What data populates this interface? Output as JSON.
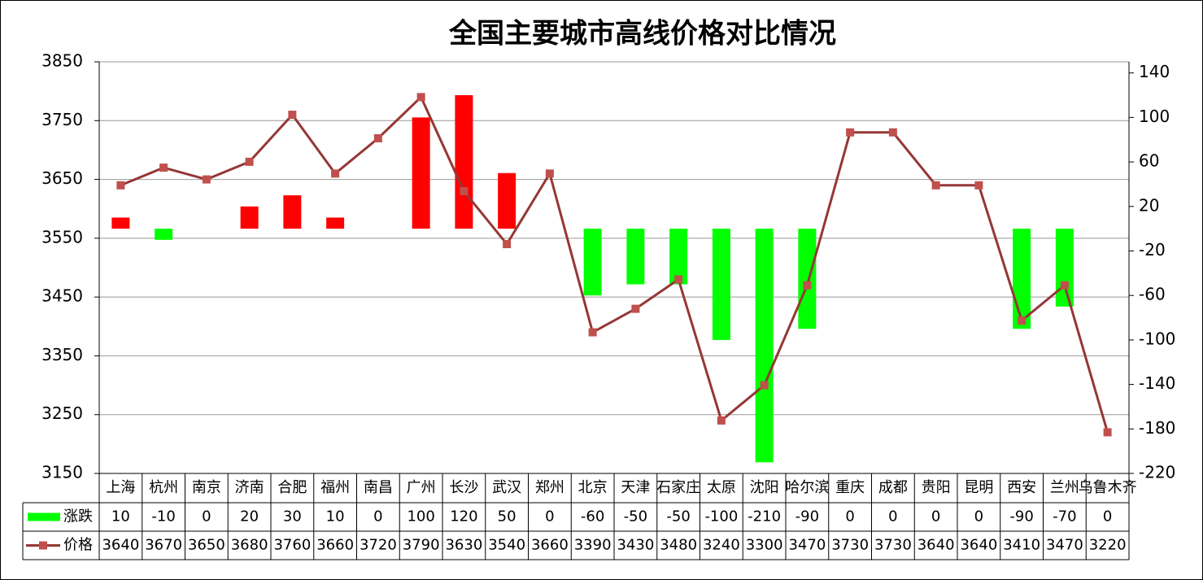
{
  "chart_data": {
    "type": "bar-line",
    "title": "全国主要城市高线价格对比情况",
    "categories": [
      "上海",
      "杭州",
      "南京",
      "济南",
      "合肥",
      "福州",
      "南昌",
      "广州",
      "长沙",
      "武汉",
      "郑州",
      "北京",
      "天津",
      "石家庄",
      "太原",
      "沈阳",
      "哈尔滨",
      "重庆",
      "成都",
      "贵阳",
      "昆明",
      "西安",
      "兰州",
      "乌鲁木齐"
    ],
    "series": [
      {
        "name": "涨跌",
        "type": "bar",
        "axis": "y2",
        "color": "#00ff00",
        "up_color": "#ff0000",
        "values": [
          10,
          -10,
          0,
          20,
          30,
          10,
          0,
          100,
          120,
          50,
          0,
          -60,
          -50,
          -50,
          -100,
          -210,
          -90,
          0,
          0,
          0,
          0,
          -90,
          -70,
          0
        ]
      },
      {
        "name": "价格",
        "type": "line",
        "color": "#953735",
        "marker_color": "#c0504d",
        "values": [
          3640,
          3670,
          3650,
          3680,
          3760,
          3660,
          3720,
          3790,
          3630,
          3540,
          3660,
          3390,
          3430,
          3480,
          3240,
          3300,
          3470,
          3730,
          3730,
          3640,
          3640,
          3410,
          3470,
          3220
        ]
      }
    ],
    "ylim": [
      3150,
      3850
    ],
    "yticks": [
      3150,
      3250,
      3350,
      3450,
      3550,
      3650,
      3750,
      3850
    ],
    "y2lim": [
      -220,
      150
    ],
    "y2ticks": [
      -220,
      -180,
      -140,
      -100,
      -60,
      -20,
      20,
      60,
      100,
      140
    ],
    "grid": true
  }
}
